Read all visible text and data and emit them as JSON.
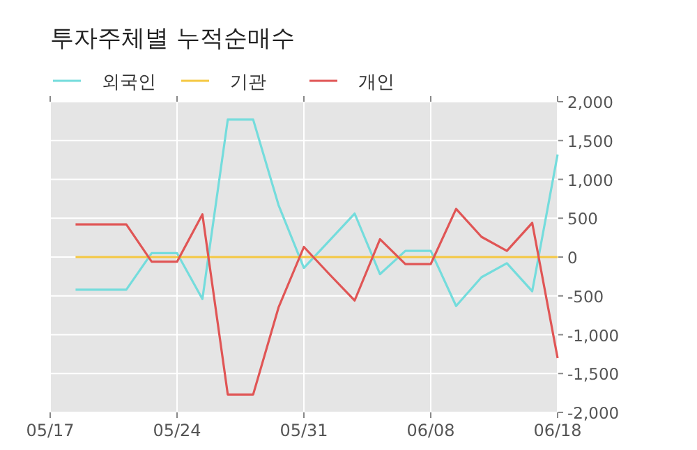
{
  "chart_data": {
    "type": "line",
    "title": "투자주체별 누적순매수",
    "categories": [
      "05/17",
      null,
      null,
      null,
      null,
      "05/24",
      null,
      null,
      null,
      null,
      "05/31",
      null,
      null,
      null,
      null,
      "06/08",
      null,
      null,
      null,
      null,
      "06/18"
    ],
    "series": [
      {
        "name": "외국인",
        "color": "#74dcdc",
        "values": [
          null,
          -420,
          -420,
          -420,
          50,
          50,
          -540,
          1770,
          1770,
          670,
          -140,
          210,
          560,
          -220,
          80,
          80,
          -630,
          -260,
          -80,
          -440,
          1320
        ]
      },
      {
        "name": "기관",
        "color": "#f5c842",
        "values": [
          null,
          0,
          0,
          0,
          0,
          0,
          0,
          0,
          0,
          0,
          0,
          0,
          0,
          0,
          0,
          0,
          0,
          0,
          0,
          0,
          0
        ]
      },
      {
        "name": "개인",
        "color": "#e05555",
        "values": [
          null,
          420,
          420,
          420,
          -60,
          -60,
          550,
          -1770,
          -1770,
          -650,
          130,
          -220,
          -560,
          230,
          -90,
          -90,
          620,
          260,
          80,
          440,
          -1300
        ]
      }
    ],
    "ylim": [
      -2000,
      2000
    ],
    "yticks": [
      {
        "value": -2000,
        "label": "-2,000"
      },
      {
        "value": -1500,
        "label": "-1,500"
      },
      {
        "value": -1000,
        "label": "-1,000"
      },
      {
        "value": -500,
        "label": "-500"
      },
      0,
      500,
      {
        "value": 1000,
        "label": "1,000"
      },
      {
        "value": 1500,
        "label": "1,500"
      },
      {
        "value": 2000,
        "label": "2,000"
      }
    ],
    "grid": true,
    "legend": "top left"
  }
}
